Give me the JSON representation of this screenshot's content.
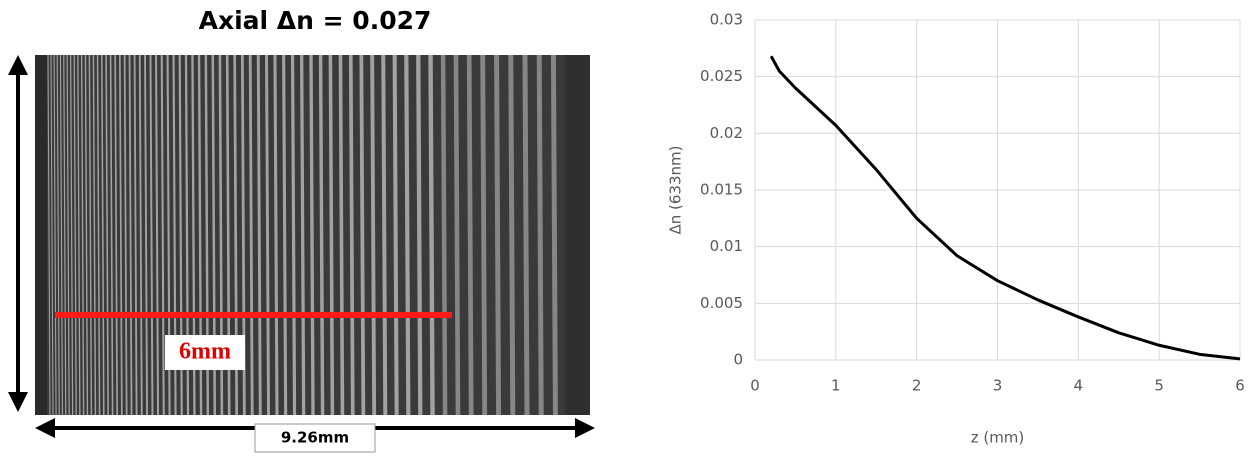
{
  "image_panel": {
    "title": "Axial Δn = 0.027",
    "scale_label": "6mm",
    "width_label": "9.26mm"
  },
  "chart_data": {
    "type": "line",
    "x_label": "z (mm)",
    "y_label": "Δn (633nm)",
    "x": [
      0.2,
      0.3,
      0.5,
      1.0,
      1.5,
      2.0,
      2.5,
      3.0,
      3.5,
      4.0,
      4.5,
      5.0,
      5.5,
      6.0
    ],
    "values": [
      0.0268,
      0.0255,
      0.024,
      0.0207,
      0.0168,
      0.0125,
      0.0092,
      0.007,
      0.0053,
      0.0038,
      0.0024,
      0.0013,
      0.0005,
      0.0001
    ],
    "color": "#000000",
    "xlim": [
      0,
      6
    ],
    "xticks": [
      0,
      1,
      2,
      3,
      4,
      5,
      6
    ],
    "ylim": [
      0,
      0.03
    ],
    "yticks": [
      0,
      0.005,
      0.01,
      0.015,
      0.02,
      0.025,
      0.03
    ],
    "grid": true
  }
}
